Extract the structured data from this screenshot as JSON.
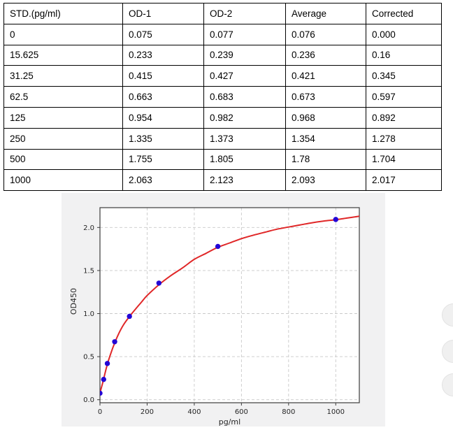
{
  "table": {
    "columns": [
      "STD.(pg/ml)",
      "OD-1",
      "OD-2",
      "Average",
      "Corrected"
    ],
    "rows": [
      [
        "0",
        "0.075",
        "0.077",
        "0.076",
        "0.000"
      ],
      [
        "15.625",
        "0.233",
        "0.239",
        "0.236",
        "0.16"
      ],
      [
        "31.25",
        "0.415",
        "0.427",
        "0.421",
        "0.345"
      ],
      [
        "62.5",
        "0.663",
        "0.683",
        "0.673",
        "0.597"
      ],
      [
        "125",
        "0.954",
        "0.982",
        "0.968",
        "0.892"
      ],
      [
        "250",
        "1.335",
        "1.373",
        "1.354",
        "1.278"
      ],
      [
        "500",
        "1.755",
        "1.805",
        "1.78",
        "1.704"
      ],
      [
        "1000",
        "2.063",
        "2.123",
        "2.093",
        "2.017"
      ]
    ]
  },
  "chart_data": {
    "type": "scatter",
    "title": "",
    "xlabel": "pg/ml",
    "ylabel": "OD450",
    "xlim": [
      0,
      1100
    ],
    "ylim": [
      -0.035,
      2.23
    ],
    "x_ticks": [
      0,
      200,
      400,
      600,
      800,
      1000
    ],
    "x_tick_labels": [
      "0",
      "200",
      "400",
      "600",
      "800",
      "1000"
    ],
    "y_ticks": [
      0,
      0.5,
      1,
      1.5,
      2
    ],
    "y_tick_labels": [
      "0.0",
      "0.5",
      "1.0",
      "1.5",
      "2.0"
    ],
    "grid": "dashed",
    "legend": "none",
    "series": [
      {
        "name": "standards-average-od",
        "type": "scatter",
        "x": [
          0,
          15.625,
          31.25,
          62.5,
          125,
          250,
          500,
          1000
        ],
        "y": [
          0.076,
          0.236,
          0.421,
          0.673,
          0.968,
          1.354,
          1.78,
          2.093
        ]
      },
      {
        "name": "fitted-curve",
        "type": "line",
        "points": [
          [
            0,
            0.08
          ],
          [
            10,
            0.18
          ],
          [
            20,
            0.29
          ],
          [
            31.25,
            0.41
          ],
          [
            45,
            0.53
          ],
          [
            62.5,
            0.66
          ],
          [
            80,
            0.77
          ],
          [
            100,
            0.87
          ],
          [
            125,
            0.965
          ],
          [
            150,
            1.05
          ],
          [
            175,
            1.13
          ],
          [
            200,
            1.21
          ],
          [
            250,
            1.335
          ],
          [
            300,
            1.44
          ],
          [
            350,
            1.53
          ],
          [
            400,
            1.63
          ],
          [
            450,
            1.7
          ],
          [
            500,
            1.77
          ],
          [
            550,
            1.82
          ],
          [
            600,
            1.87
          ],
          [
            650,
            1.91
          ],
          [
            700,
            1.945
          ],
          [
            750,
            1.98
          ],
          [
            800,
            2.005
          ],
          [
            850,
            2.03
          ],
          [
            900,
            2.055
          ],
          [
            950,
            2.075
          ],
          [
            1000,
            2.09
          ],
          [
            1050,
            2.11
          ],
          [
            1100,
            2.13
          ]
        ]
      }
    ],
    "colors": {
      "points": "#2306d6",
      "curve": "#e02728",
      "panel_bg": "#f1f1f2",
      "plot_bg": "#ffffff",
      "grid": "#c9c9c9",
      "spine": "#3c3c3c",
      "text": "#262626"
    }
  },
  "floating_buttons": [
    {
      "name": "floating-button-1"
    },
    {
      "name": "floating-button-2"
    },
    {
      "name": "floating-button-3"
    }
  ]
}
